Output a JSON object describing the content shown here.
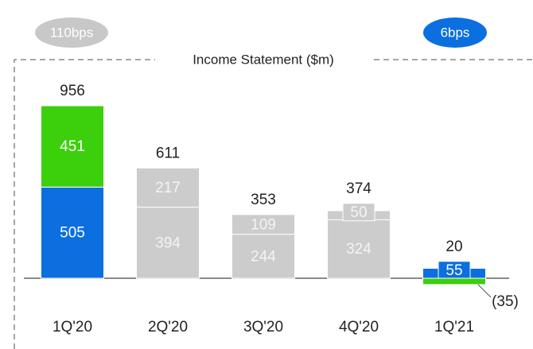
{
  "chart_data": {
    "type": "stacked_bar",
    "title": "Income Statement ($m)",
    "annotations": [
      "110bps",
      "6bps"
    ],
    "categories": [
      "1Q'20",
      "2Q'20",
      "3Q'20",
      "4Q'20",
      "1Q'21"
    ],
    "totals": [
      956,
      611,
      353,
      374,
      20
    ],
    "series": [
      {
        "values": [
          505,
          394,
          244,
          324,
          55
        ],
        "colors": [
          "#0b6fe0",
          "#cccccc",
          "#cccccc",
          "#cccccc",
          "#0b6fe0"
        ]
      },
      {
        "values": [
          451,
          217,
          109,
          50,
          -35
        ],
        "value_labels": [
          "451",
          "217",
          "109",
          "50",
          "(35)"
        ],
        "colors": [
          "#3ccf0c",
          "#cccccc",
          "#cccccc",
          "#cccccc",
          "#3ccf0c"
        ]
      }
    ]
  }
}
